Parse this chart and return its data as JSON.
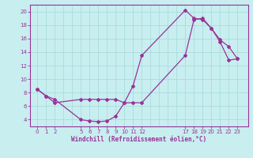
{
  "xlabel": "Windchill (Refroidissement éolien,°C)",
  "bg_color": "#c8eef0",
  "grid_color": "#aadddd",
  "line_color": "#993399",
  "xlim": [
    -0.8,
    24.2
  ],
  "ylim": [
    3.0,
    21.0
  ],
  "xticks": [
    0,
    1,
    2,
    5,
    6,
    7,
    8,
    9,
    10,
    11,
    12,
    17,
    18,
    19,
    20,
    21,
    22,
    23
  ],
  "yticks": [
    4,
    6,
    8,
    10,
    12,
    14,
    16,
    18,
    20
  ],
  "line1_x": [
    0,
    1,
    2,
    5,
    6,
    7,
    8,
    9,
    10,
    11,
    12,
    17,
    18,
    19,
    20,
    21,
    22,
    23
  ],
  "line1_y": [
    8.5,
    7.5,
    7.0,
    4.0,
    3.8,
    3.7,
    3.8,
    4.5,
    6.5,
    9.0,
    13.5,
    20.2,
    19.0,
    18.8,
    17.5,
    15.8,
    14.8,
    13.0
  ],
  "line2_x": [
    0,
    1,
    2,
    5,
    6,
    7,
    8,
    9,
    10,
    11,
    12,
    17,
    18,
    19,
    20,
    21,
    22,
    23
  ],
  "line2_y": [
    8.5,
    7.5,
    6.5,
    7.0,
    7.0,
    7.0,
    7.0,
    7.0,
    6.5,
    6.5,
    6.5,
    13.5,
    18.8,
    19.0,
    17.5,
    15.5,
    12.8,
    13.0
  ],
  "gridlines_x": [
    0,
    1,
    2,
    3,
    4,
    5,
    6,
    7,
    8,
    9,
    10,
    11,
    12,
    13,
    14,
    15,
    16,
    17,
    18,
    19,
    20,
    21,
    22,
    23
  ],
  "gridlines_y": [
    4,
    6,
    8,
    10,
    12,
    14,
    16,
    18,
    20
  ]
}
